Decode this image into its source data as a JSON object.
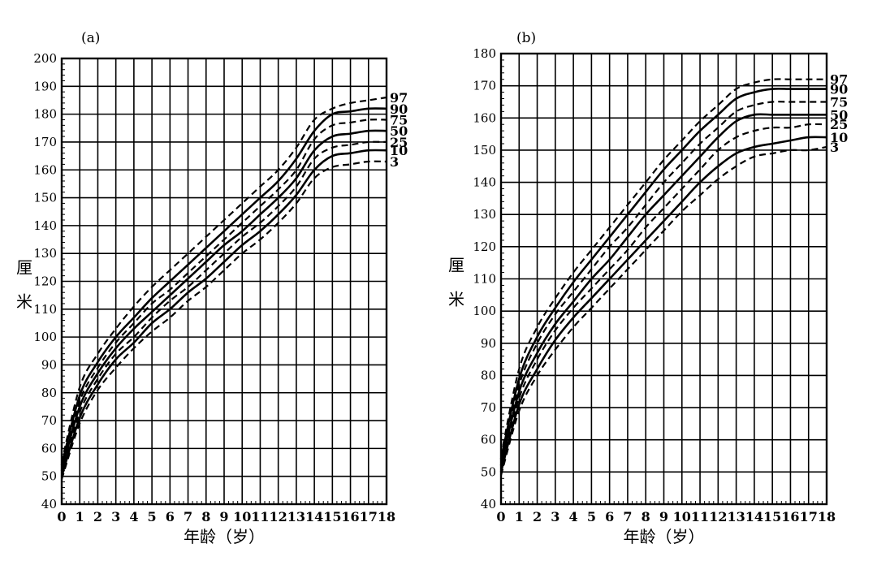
{
  "chart_data": [
    {
      "type": "line",
      "panel_label": "(a)",
      "ylabel": "厘米",
      "xlabel": "年龄（岁）",
      "xlim": [
        0,
        18
      ],
      "ylim": [
        40,
        200
      ],
      "x_ticks": [
        0,
        1,
        2,
        3,
        4,
        5,
        6,
        7,
        8,
        9,
        10,
        11,
        12,
        13,
        14,
        15,
        16,
        17,
        18
      ],
      "y_ticks": [
        40,
        50,
        60,
        70,
        80,
        90,
        100,
        110,
        120,
        130,
        140,
        150,
        160,
        170,
        180,
        190,
        200
      ],
      "grid": true,
      "percentile_labels": [
        "97",
        "90",
        "75",
        "50",
        "25",
        "10",
        "3"
      ],
      "x": [
        0,
        1,
        2,
        3,
        4,
        5,
        6,
        7,
        8,
        9,
        10,
        11,
        12,
        13,
        14,
        15,
        16,
        17,
        18
      ],
      "series": [
        {
          "name": "97",
          "dash": true,
          "values": [
            55,
            82,
            94,
            103,
            111,
            118,
            124,
            130,
            136,
            142,
            148,
            154,
            160,
            168,
            178,
            182,
            184,
            185,
            186
          ]
        },
        {
          "name": "90",
          "dash": false,
          "values": [
            54,
            79,
            91,
            100,
            107,
            114,
            120,
            126,
            132,
            138,
            144,
            150,
            156,
            164,
            174,
            180,
            181,
            182,
            182
          ]
        },
        {
          "name": "75",
          "dash": true,
          "values": [
            53,
            77,
            89,
            98,
            105,
            112,
            117,
            123,
            129,
            135,
            141,
            147,
            153,
            160,
            171,
            176,
            177,
            178,
            178
          ]
        },
        {
          "name": "50",
          "dash": false,
          "values": [
            52,
            75,
            87,
            96,
            103,
            109,
            115,
            121,
            127,
            133,
            138,
            144,
            150,
            157,
            167,
            172,
            173,
            174,
            174
          ]
        },
        {
          "name": "25",
          "dash": true,
          "values": [
            51,
            73,
            85,
            94,
            100,
            107,
            113,
            118,
            124,
            130,
            136,
            141,
            147,
            154,
            164,
            168,
            169,
            170,
            170
          ]
        },
        {
          "name": "10",
          "dash": false,
          "values": [
            50,
            71,
            83,
            92,
            98,
            105,
            110,
            116,
            121,
            127,
            133,
            138,
            144,
            151,
            160,
            165,
            166,
            167,
            167
          ]
        },
        {
          "name": "3",
          "dash": true,
          "values": [
            49,
            69,
            81,
            89,
            96,
            102,
            107,
            113,
            118,
            124,
            130,
            135,
            141,
            148,
            157,
            161,
            162,
            163,
            163
          ]
        }
      ]
    },
    {
      "type": "line",
      "panel_label": "(b)",
      "ylabel": "厘米",
      "xlabel": "年龄（岁）",
      "xlim": [
        0,
        18
      ],
      "ylim": [
        40,
        180
      ],
      "x_ticks": [
        0,
        1,
        2,
        3,
        4,
        5,
        6,
        7,
        8,
        9,
        10,
        11,
        12,
        13,
        14,
        15,
        16,
        17,
        18
      ],
      "y_ticks": [
        40,
        50,
        60,
        70,
        80,
        90,
        100,
        110,
        120,
        130,
        140,
        150,
        160,
        170,
        180
      ],
      "grid": true,
      "percentile_labels": [
        "97",
        "90",
        "75",
        "50",
        "25",
        "10",
        "3"
      ],
      "x": [
        0,
        1,
        2,
        3,
        4,
        5,
        6,
        7,
        8,
        9,
        10,
        11,
        12,
        13,
        14,
        15,
        16,
        17,
        18
      ],
      "series": [
        {
          "name": "97",
          "dash": true,
          "values": [
            55,
            82,
            95,
            104,
            112,
            119,
            126,
            133,
            140,
            147,
            153,
            159,
            164,
            169,
            171,
            172,
            172,
            172,
            172
          ]
        },
        {
          "name": "90",
          "dash": false,
          "values": [
            54,
            79,
            92,
            101,
            109,
            116,
            123,
            130,
            137,
            144,
            150,
            156,
            161,
            166,
            168,
            169,
            169,
            169,
            169
          ]
        },
        {
          "name": "75",
          "dash": true,
          "values": [
            53,
            77,
            90,
            99,
            106,
            113,
            120,
            126,
            133,
            140,
            146,
            152,
            157,
            162,
            164,
            165,
            165,
            165,
            165
          ]
        },
        {
          "name": "50",
          "dash": false,
          "values": [
            52,
            75,
            87,
            96,
            103,
            110,
            116,
            123,
            130,
            136,
            142,
            148,
            154,
            159,
            161,
            161,
            161,
            161,
            161
          ]
        },
        {
          "name": "25",
          "dash": true,
          "values": [
            51,
            73,
            85,
            94,
            101,
            107,
            113,
            119,
            126,
            132,
            138,
            144,
            150,
            154,
            156,
            157,
            157,
            158,
            158
          ]
        },
        {
          "name": "10",
          "dash": false,
          "values": [
            50,
            71,
            82,
            91,
            98,
            104,
            110,
            116,
            122,
            128,
            134,
            140,
            145,
            149,
            151,
            152,
            153,
            154,
            154
          ]
        },
        {
          "name": "3",
          "dash": true,
          "values": [
            49,
            69,
            80,
            88,
            95,
            101,
            107,
            113,
            119,
            125,
            131,
            136,
            141,
            145,
            148,
            149,
            150,
            150,
            151
          ]
        }
      ]
    }
  ]
}
